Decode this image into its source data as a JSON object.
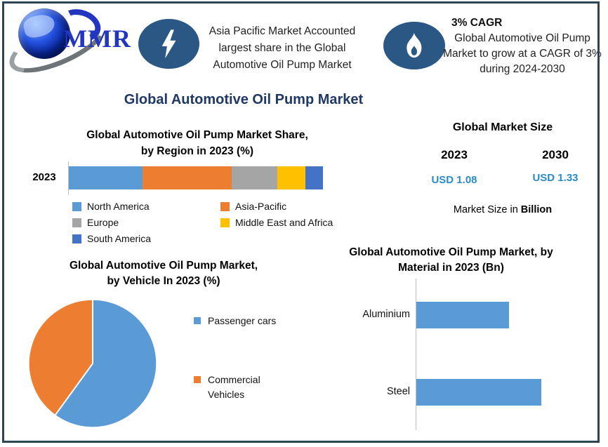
{
  "colors": {
    "frame": "#2D4454",
    "title_navy": "#1F3864",
    "usd_blue": "#2A8BC6",
    "icon_circle": "#2A5783",
    "axis_gray": "#BFBFBF"
  },
  "header": {
    "logo": {
      "text": "MMR"
    },
    "highlight": {
      "icon": "lightning-icon",
      "text": "Asia Pacific Market Accounted largest share in the Global Automotive Oil Pump Market"
    },
    "cagr": {
      "icon": "flame-icon",
      "heading": "3% CAGR",
      "text": "Global Automotive Oil Pump Market to grow at a CAGR of 3% during 2024-2030"
    }
  },
  "main_title": "Global Automotive Oil Pump Market",
  "market_size": {
    "title": "Global Market Size",
    "columns": [
      {
        "year": "2023",
        "value": "USD 1.08"
      },
      {
        "year": "2030",
        "value": "USD 1.33"
      }
    ],
    "note_prefix": "Market Size in ",
    "note_bold": "Billion"
  },
  "chart_data": [
    {
      "id": "region-share",
      "type": "bar",
      "variant": "stacked-horizontal",
      "title_line1": "Global Automotive Oil Pump Market Share,",
      "title_line2": "by Region in 2023 (%)",
      "categories": [
        "2023"
      ],
      "unit": "%",
      "legend_position": "bottom",
      "series": [
        {
          "name": "North America",
          "value": 29,
          "color": "#5B9BD5"
        },
        {
          "name": "Asia-Pacific",
          "value": 35,
          "color": "#ED7D31"
        },
        {
          "name": "Europe",
          "value": 18,
          "color": "#A5A5A5"
        },
        {
          "name": "Middle East and Africa",
          "value": 11,
          "color": "#FFC000"
        },
        {
          "name": "South America",
          "value": 7,
          "color": "#4472C4"
        }
      ]
    },
    {
      "id": "vehicle-share",
      "type": "pie",
      "title_line1": "Global Automotive Oil Pump Market,",
      "title_line2": "by Vehicle In 2023 (%)",
      "unit": "%",
      "start_angle_deg": 0,
      "legend_position": "right",
      "slices": [
        {
          "label": "Passenger cars",
          "value": 60,
          "color": "#5B9BD5"
        },
        {
          "label": "Commercial Vehicles",
          "value": 40,
          "color": "#ED7D31"
        }
      ]
    },
    {
      "id": "material-size",
      "type": "bar",
      "variant": "horizontal",
      "title_line1": "Global Automotive Oil Pump Market, by",
      "title_line2": "Material in 2023 (Bn)",
      "categories": [
        "Aluminium",
        "Steel"
      ],
      "values": [
        0.45,
        0.61
      ],
      "xlim": [
        0,
        0.65
      ],
      "unit": "Bn",
      "color": "#5B9BD5",
      "grid": false
    }
  ]
}
